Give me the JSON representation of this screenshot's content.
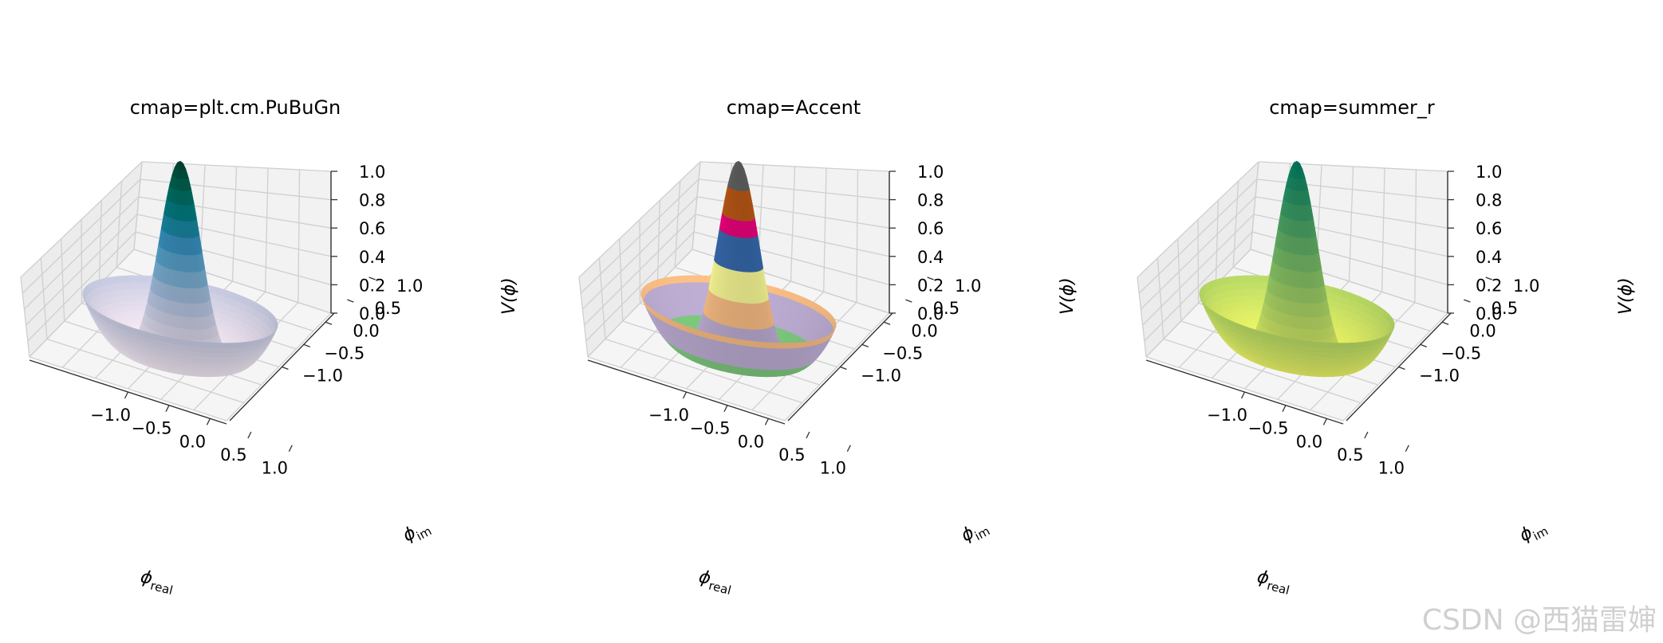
{
  "chart_data": [
    {
      "type": "surface3d",
      "title": "cmap=plt.cm.PuBuGn",
      "cmap": "PuBuGn",
      "colormap_stops": [
        "#fff7fb",
        "#ece2f0",
        "#d0d1e6",
        "#a6bddb",
        "#67a9cf",
        "#3690c0",
        "#02818a",
        "#016c59",
        "#014636"
      ],
      "xlabel": "φreal",
      "ylabel": "φim",
      "zlabel": "V(φ)",
      "xticks": [
        "−1.0",
        "−0.5",
        "0.0",
        "0.5",
        "1.0"
      ],
      "yticks": [
        "−1.0",
        "−0.5",
        "0.0",
        "0.5",
        "1.0"
      ],
      "zticks": [
        "0.0",
        "0.2",
        "0.4",
        "0.6",
        "0.8",
        "1.0"
      ],
      "xlim": [
        -1.2,
        1.2
      ],
      "ylim": [
        -1.2,
        1.2
      ],
      "zlim": [
        0,
        1
      ],
      "peak": 1.0
    },
    {
      "type": "surface3d",
      "title": "cmap=Accent",
      "cmap": "Accent",
      "colormap_stops": [
        "#7fc97f",
        "#beaed4",
        "#fdc086",
        "#ffff99",
        "#386cb0",
        "#f0027f",
        "#bf5b17",
        "#666666"
      ],
      "discrete": true,
      "xlabel": "φreal",
      "ylabel": "φim",
      "zlabel": "V(φ)",
      "xticks": [
        "−1.0",
        "−0.5",
        "0.0",
        "0.5",
        "1.0"
      ],
      "yticks": [
        "−1.0",
        "−0.5",
        "0.0",
        "0.5",
        "1.0"
      ],
      "zticks": [
        "0.0",
        "0.2",
        "0.4",
        "0.6",
        "0.8",
        "1.0"
      ],
      "xlim": [
        -1.2,
        1.2
      ],
      "ylim": [
        -1.2,
        1.2
      ],
      "zlim": [
        0,
        1
      ],
      "peak": 1.0
    },
    {
      "type": "surface3d",
      "title": "cmap=summer_r",
      "cmap": "summer_r",
      "colormap_stops": [
        "#ffff66",
        "#cce566",
        "#99cc66",
        "#66b266",
        "#339966",
        "#008066"
      ],
      "xlabel": "φreal",
      "ylabel": "φim",
      "zlabel": "V(φ)",
      "xticks": [
        "−1.0",
        "−0.5",
        "0.0",
        "0.5",
        "1.0"
      ],
      "yticks": [
        "−1.0",
        "−0.5",
        "0.0",
        "0.5",
        "1.0"
      ],
      "zticks": [
        "0.0",
        "0.2",
        "0.4",
        "0.6",
        "0.8",
        "1.0"
      ],
      "xlim": [
        -1.2,
        1.2
      ],
      "ylim": [
        -1.2,
        1.2
      ],
      "zlim": [
        0,
        1
      ],
      "peak": 1.0
    }
  ],
  "watermark": "CSDN @西猫雷婶"
}
